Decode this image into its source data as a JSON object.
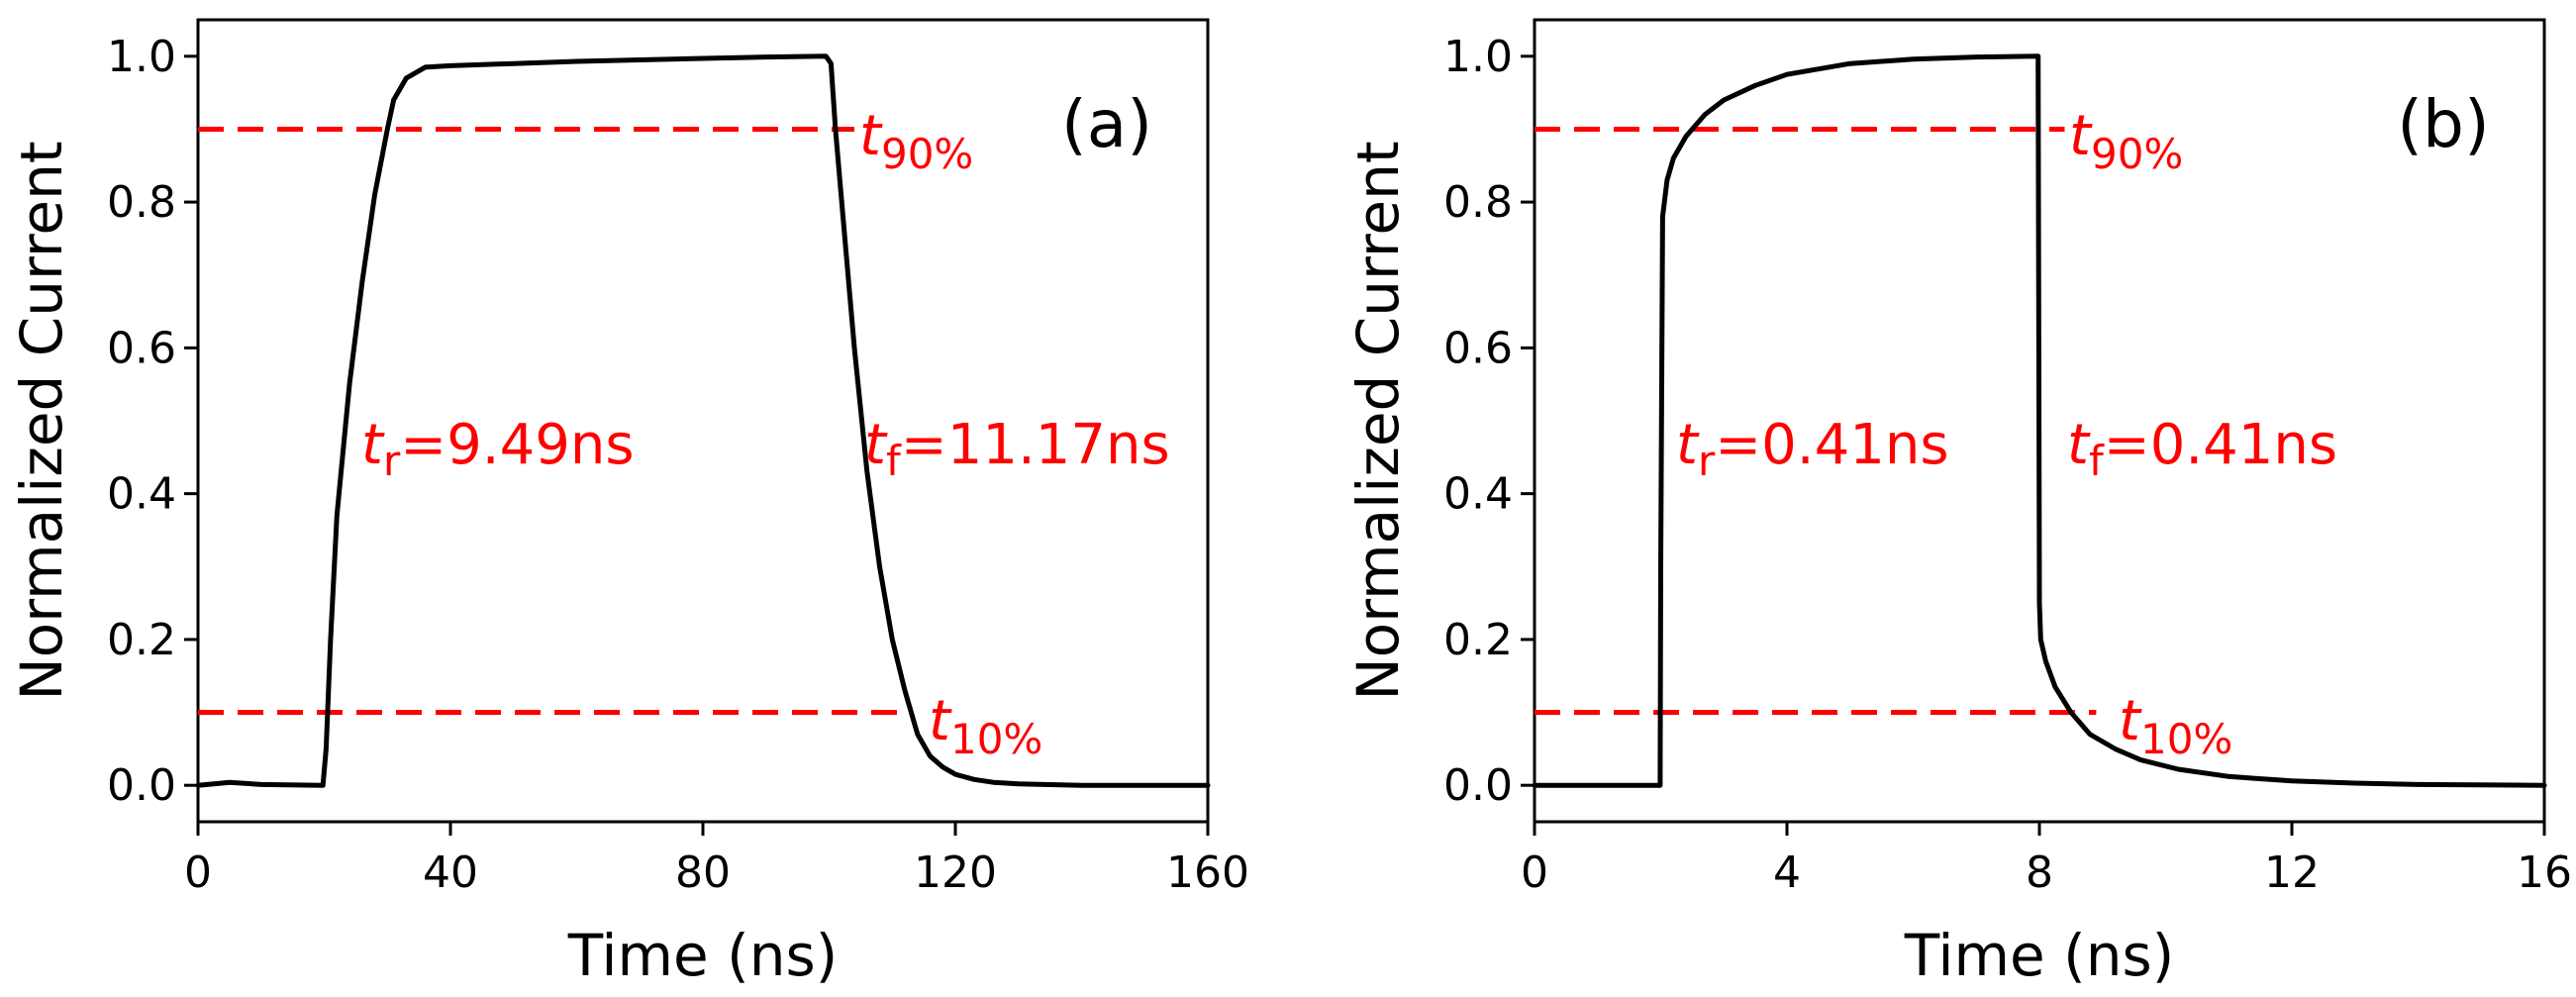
{
  "colors": {
    "curve": "#000000",
    "reference": "#ff0000",
    "annotation": "#ff0000"
  },
  "chart_data": [
    {
      "type": "line",
      "panel_label": "(a)",
      "xlabel": "Time (ns)",
      "ylabel": "Normalized Current",
      "xlim": [
        0,
        160
      ],
      "ylim": [
        -0.05,
        1.05
      ],
      "xticks": [
        0,
        40,
        80,
        120,
        160
      ],
      "xtick_labels": [
        "0",
        "40",
        "80",
        "120",
        "160"
      ],
      "yticks": [
        0.0,
        0.2,
        0.4,
        0.6,
        0.8,
        1.0
      ],
      "ytick_labels": [
        "0.0",
        "0.2",
        "0.4",
        "0.6",
        "0.8",
        "1.0"
      ],
      "series": [
        {
          "name": "Normalized Current",
          "x": [
            0,
            5,
            10,
            19.8,
            20.3,
            21,
            22,
            24,
            26,
            28,
            30,
            31,
            33,
            36,
            40,
            50,
            60,
            70,
            80,
            90,
            99.5,
            100.3,
            101,
            102.5,
            104,
            106,
            108,
            110,
            112,
            114,
            116,
            118,
            120,
            123,
            126,
            130,
            140,
            150,
            160
          ],
          "y": [
            0,
            0.004,
            0.001,
            0.0,
            0.05,
            0.2,
            0.37,
            0.55,
            0.69,
            0.81,
            0.9,
            0.94,
            0.97,
            0.985,
            0.987,
            0.99,
            0.993,
            0.995,
            0.997,
            0.999,
            1.0,
            0.99,
            0.9,
            0.75,
            0.6,
            0.43,
            0.3,
            0.2,
            0.13,
            0.07,
            0.04,
            0.025,
            0.015,
            0.008,
            0.004,
            0.002,
            0.0,
            0.0,
            0.0
          ]
        }
      ],
      "reference_lines": [
        {
          "y": 0.9,
          "x_start": 0,
          "x_end": 104,
          "label": "t",
          "label_sub": "90%"
        },
        {
          "y": 0.1,
          "x_start": 0,
          "x_end": 112,
          "label": "t",
          "label_sub": "10%"
        }
      ],
      "annotations": [
        {
          "symbol": "t",
          "sub": "r",
          "text": "=9.49ns"
        },
        {
          "symbol": "t",
          "sub": "f",
          "text": "=11.17ns"
        }
      ]
    },
    {
      "type": "line",
      "panel_label": "(b)",
      "xlabel": "Time (ns)",
      "ylabel": "Normalized Current",
      "xlim": [
        0,
        16
      ],
      "ylim": [
        -0.05,
        1.05
      ],
      "xticks": [
        0,
        4,
        8,
        12,
        16
      ],
      "xtick_labels": [
        "0",
        "4",
        "8",
        "12",
        "16"
      ],
      "yticks": [
        0.0,
        0.2,
        0.4,
        0.6,
        0.8,
        1.0
      ],
      "ytick_labels": [
        "0.0",
        "0.2",
        "0.4",
        "0.6",
        "0.8",
        "1.0"
      ],
      "series": [
        {
          "name": "Normalized Current",
          "x": [
            0,
            1.99,
            2.0,
            2.03,
            2.1,
            2.2,
            2.4,
            2.7,
            3.0,
            3.5,
            4.0,
            5.0,
            6.0,
            7.0,
            7.98,
            7.99,
            8.0,
            8.02,
            8.1,
            8.25,
            8.5,
            8.8,
            9.2,
            9.6,
            10.2,
            11,
            12,
            13,
            14,
            16
          ],
          "y": [
            0,
            0,
            0.3,
            0.78,
            0.83,
            0.86,
            0.89,
            0.92,
            0.94,
            0.96,
            0.975,
            0.99,
            0.996,
            0.999,
            1.0,
            0.6,
            0.25,
            0.2,
            0.17,
            0.135,
            0.1,
            0.07,
            0.05,
            0.035,
            0.022,
            0.012,
            0.006,
            0.003,
            0.001,
            0.0
          ]
        }
      ],
      "reference_lines": [
        {
          "y": 0.9,
          "x_start": 0,
          "x_end": 8.4,
          "label": "t",
          "label_sub": "90%"
        },
        {
          "y": 0.1,
          "x_start": 0,
          "x_end": 8.9,
          "label": "t",
          "label_sub": "10%"
        }
      ],
      "annotations": [
        {
          "symbol": "t",
          "sub": "r",
          "text": "=0.41ns"
        },
        {
          "symbol": "t",
          "sub": "f",
          "text": "=0.41ns"
        }
      ]
    }
  ]
}
